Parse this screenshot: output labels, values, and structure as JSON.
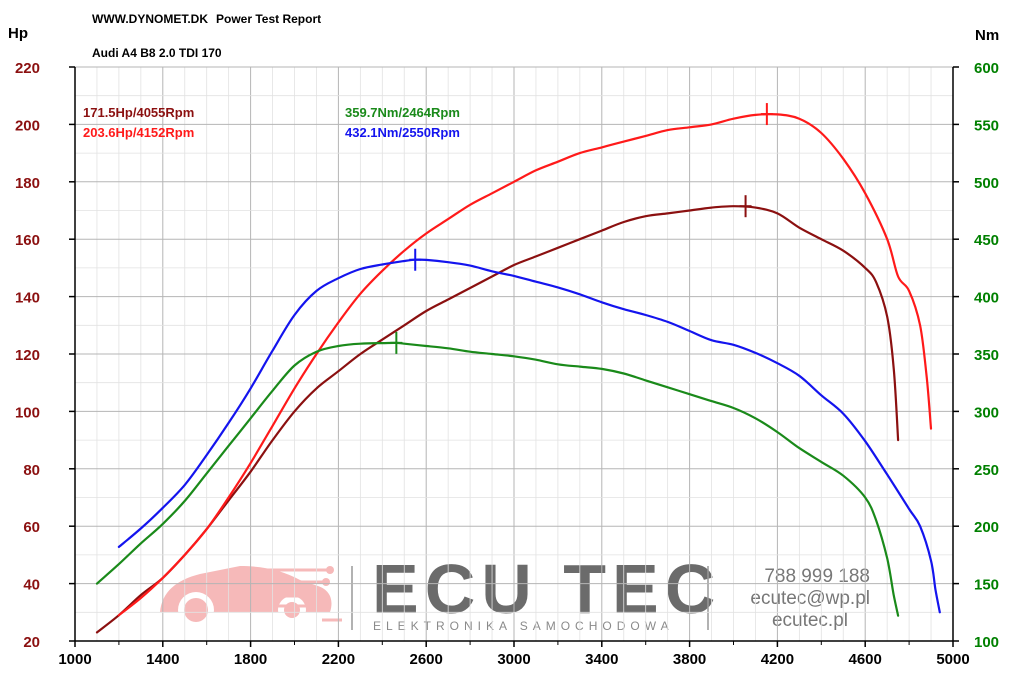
{
  "report": {
    "site": "WWW.DYNOMET.DK",
    "title": "Power Test Report",
    "vehicle": "Audi A4 B8 2.0 TDI 170"
  },
  "colors": {
    "hp_stock": "#8b1010",
    "hp_tuned": "#ff1a1a",
    "nm_stock": "#1a8a1a",
    "nm_tuned": "#1414ee",
    "left_axis": "#8b1010",
    "right_axis": "#008000"
  },
  "watermark": {
    "brand": "ECU TEC",
    "tagline": "ELEKTRONIKA SAMOCHODOWA",
    "phone": "788 999 188",
    "email": "ecutec@wp.pl",
    "web": "ecutec.pl",
    "logo_icon": "car-circuit-logo-icon"
  },
  "chart_data": {
    "type": "line",
    "x_ticks": [
      1000,
      1400,
      1800,
      2200,
      2600,
      3000,
      3400,
      3800,
      4200,
      4600,
      5000
    ],
    "xlim": [
      1000,
      5000
    ],
    "y_left": {
      "unit": "Hp",
      "ticks": [
        20,
        40,
        60,
        80,
        100,
        120,
        140,
        160,
        180,
        200,
        220
      ],
      "lim": [
        20,
        220
      ]
    },
    "y_right": {
      "unit": "Nm",
      "ticks": [
        100,
        150,
        200,
        250,
        300,
        350,
        400,
        450,
        500,
        550,
        600
      ],
      "lim": [
        100,
        600
      ]
    },
    "grid": true,
    "annotations": [
      {
        "text": "171.5Hp/4055Rpm",
        "series": 0
      },
      {
        "text": "203.6Hp/4152Rpm",
        "series": 1
      },
      {
        "text": "359.7Nm/2464Rpm",
        "series": 2
      },
      {
        "text": "432.1Nm/2550Rpm",
        "series": 3
      }
    ],
    "series": [
      {
        "axis": "left",
        "color": "#8b1010",
        "peak": [
          4055,
          171.5
        ],
        "points": [
          [
            1100,
            23
          ],
          [
            1200,
            29
          ],
          [
            1300,
            36
          ],
          [
            1400,
            42
          ],
          [
            1500,
            50
          ],
          [
            1600,
            59
          ],
          [
            1700,
            69
          ],
          [
            1800,
            79
          ],
          [
            1900,
            90
          ],
          [
            2000,
            100
          ],
          [
            2100,
            108
          ],
          [
            2200,
            114
          ],
          [
            2300,
            120
          ],
          [
            2400,
            125
          ],
          [
            2500,
            130
          ],
          [
            2600,
            135
          ],
          [
            2700,
            139
          ],
          [
            2800,
            143
          ],
          [
            2900,
            147
          ],
          [
            3000,
            151
          ],
          [
            3100,
            154
          ],
          [
            3200,
            157
          ],
          [
            3300,
            160
          ],
          [
            3400,
            163
          ],
          [
            3500,
            166
          ],
          [
            3600,
            168
          ],
          [
            3700,
            169
          ],
          [
            3800,
            170
          ],
          [
            3900,
            171
          ],
          [
            4000,
            171.5
          ],
          [
            4100,
            171
          ],
          [
            4200,
            169
          ],
          [
            4300,
            164
          ],
          [
            4400,
            160
          ],
          [
            4500,
            156
          ],
          [
            4600,
            150
          ],
          [
            4650,
            145
          ],
          [
            4700,
            133
          ],
          [
            4730,
            115
          ],
          [
            4750,
            90
          ]
        ]
      },
      {
        "axis": "left",
        "color": "#ff1a1a",
        "peak": [
          4152,
          203.6
        ],
        "points": [
          [
            1200,
            29
          ],
          [
            1300,
            35
          ],
          [
            1400,
            42
          ],
          [
            1500,
            50
          ],
          [
            1600,
            59
          ],
          [
            1700,
            70
          ],
          [
            1800,
            82
          ],
          [
            1900,
            95
          ],
          [
            2000,
            108
          ],
          [
            2100,
            120
          ],
          [
            2200,
            131
          ],
          [
            2300,
            141
          ],
          [
            2400,
            149
          ],
          [
            2500,
            156
          ],
          [
            2600,
            162
          ],
          [
            2700,
            167
          ],
          [
            2800,
            172
          ],
          [
            2900,
            176
          ],
          [
            3000,
            180
          ],
          [
            3100,
            184
          ],
          [
            3200,
            187
          ],
          [
            3300,
            190
          ],
          [
            3400,
            192
          ],
          [
            3500,
            194
          ],
          [
            3600,
            196
          ],
          [
            3700,
            198
          ],
          [
            3800,
            199
          ],
          [
            3900,
            200
          ],
          [
            4000,
            202
          ],
          [
            4100,
            203.3
          ],
          [
            4200,
            203.5
          ],
          [
            4300,
            202
          ],
          [
            4400,
            197
          ],
          [
            4500,
            188
          ],
          [
            4600,
            176
          ],
          [
            4700,
            160
          ],
          [
            4750,
            147
          ],
          [
            4800,
            142
          ],
          [
            4850,
            130
          ],
          [
            4880,
            112
          ],
          [
            4900,
            94
          ]
        ]
      },
      {
        "axis": "right",
        "color": "#1a8a1a",
        "peak": [
          2464,
          359.7
        ],
        "points": [
          [
            1100,
            150
          ],
          [
            1200,
            167
          ],
          [
            1300,
            185
          ],
          [
            1400,
            202
          ],
          [
            1500,
            222
          ],
          [
            1600,
            246
          ],
          [
            1700,
            270
          ],
          [
            1800,
            294
          ],
          [
            1900,
            318
          ],
          [
            2000,
            340
          ],
          [
            2100,
            352
          ],
          [
            2200,
            357
          ],
          [
            2300,
            359
          ],
          [
            2400,
            359.5
          ],
          [
            2464,
            359.7
          ],
          [
            2500,
            359
          ],
          [
            2600,
            357
          ],
          [
            2700,
            355
          ],
          [
            2800,
            352
          ],
          [
            2900,
            350
          ],
          [
            3000,
            348
          ],
          [
            3100,
            345
          ],
          [
            3200,
            341
          ],
          [
            3300,
            339
          ],
          [
            3400,
            337
          ],
          [
            3500,
            333
          ],
          [
            3600,
            327
          ],
          [
            3700,
            321
          ],
          [
            3800,
            315
          ],
          [
            3900,
            309
          ],
          [
            4000,
            303
          ],
          [
            4100,
            294
          ],
          [
            4200,
            282
          ],
          [
            4300,
            268
          ],
          [
            4400,
            256
          ],
          [
            4500,
            244
          ],
          [
            4600,
            225
          ],
          [
            4650,
            205
          ],
          [
            4700,
            172
          ],
          [
            4730,
            140
          ],
          [
            4750,
            122
          ]
        ]
      },
      {
        "axis": "right",
        "color": "#1414ee",
        "peak": [
          2550,
          432.1
        ],
        "points": [
          [
            1200,
            182
          ],
          [
            1300,
            198
          ],
          [
            1400,
            216
          ],
          [
            1500,
            236
          ],
          [
            1600,
            262
          ],
          [
            1700,
            290
          ],
          [
            1800,
            320
          ],
          [
            1900,
            353
          ],
          [
            2000,
            384
          ],
          [
            2100,
            405
          ],
          [
            2200,
            416
          ],
          [
            2300,
            424
          ],
          [
            2400,
            428
          ],
          [
            2500,
            431
          ],
          [
            2550,
            432.1
          ],
          [
            2600,
            432
          ],
          [
            2700,
            430
          ],
          [
            2800,
            427
          ],
          [
            2900,
            422
          ],
          [
            3000,
            418
          ],
          [
            3100,
            413
          ],
          [
            3200,
            408
          ],
          [
            3300,
            402
          ],
          [
            3400,
            395
          ],
          [
            3500,
            389
          ],
          [
            3600,
            384
          ],
          [
            3700,
            378
          ],
          [
            3800,
            370
          ],
          [
            3900,
            362
          ],
          [
            4000,
            358
          ],
          [
            4100,
            351
          ],
          [
            4200,
            342
          ],
          [
            4300,
            331
          ],
          [
            4400,
            314
          ],
          [
            4500,
            298
          ],
          [
            4600,
            274
          ],
          [
            4700,
            245
          ],
          [
            4800,
            215
          ],
          [
            4850,
            200
          ],
          [
            4900,
            170
          ],
          [
            4920,
            145
          ],
          [
            4940,
            125
          ]
        ]
      }
    ]
  }
}
